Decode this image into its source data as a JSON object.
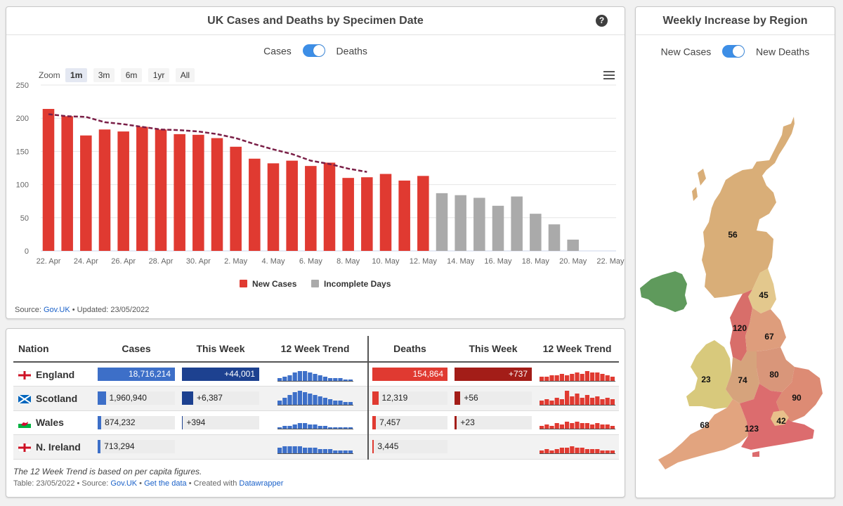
{
  "chart_card": {
    "title": "UK Cases and Deaths by Specimen Date",
    "toggle_left": "Cases",
    "toggle_right": "Deaths",
    "zoom_label": "Zoom",
    "zoom_buttons": [
      "1m",
      "3m",
      "6m",
      "1yr",
      "All"
    ],
    "zoom_active": "1m",
    "source_prefix": "Source:",
    "source_link": "Gov.UK",
    "updated": "• Updated: 23/05/2022"
  },
  "chart_data": {
    "type": "bar",
    "ylim": [
      0,
      250
    ],
    "yticks": [
      0,
      50,
      100,
      150,
      200,
      250
    ],
    "dates": [
      "22. Apr",
      "23. Apr",
      "24. Apr",
      "25. Apr",
      "26. Apr",
      "27. Apr",
      "28. Apr",
      "29. Apr",
      "30. Apr",
      "1. May",
      "2. May",
      "3. May",
      "4. May",
      "5. May",
      "6. May",
      "7. May",
      "8. May",
      "9. May",
      "10. May",
      "11. May",
      "12. May",
      "13. May",
      "14. May",
      "15. May",
      "16. May",
      "17. May",
      "18. May",
      "19. May",
      "20. May",
      "21. May",
      "22. May"
    ],
    "xtick_labels": [
      "22. Apr",
      "24. Apr",
      "26. Apr",
      "28. Apr",
      "30. Apr",
      "2. May",
      "4. May",
      "6. May",
      "8. May",
      "10. May",
      "12. May",
      "14. May",
      "16. May",
      "18. May",
      "20. May",
      "22. May"
    ],
    "series": [
      {
        "name": "New Cases",
        "color": "#e03a31",
        "values": [
          214,
          203,
          174,
          183,
          180,
          187,
          183,
          176,
          175,
          170,
          157,
          139,
          132,
          136,
          128,
          133,
          110,
          111,
          116,
          106,
          113,
          null,
          null,
          null,
          null,
          null,
          null,
          null,
          null,
          null,
          null
        ]
      },
      {
        "name": "Incomplete Days",
        "color": "#aaaaaa",
        "values": [
          null,
          null,
          null,
          null,
          null,
          null,
          null,
          null,
          null,
          null,
          null,
          null,
          null,
          null,
          null,
          null,
          null,
          null,
          null,
          null,
          null,
          87,
          84,
          80,
          68,
          82,
          56,
          40,
          17,
          null,
          null
        ]
      }
    ],
    "trend": {
      "color": "#7a1f47",
      "values": [
        206,
        203,
        202,
        194,
        191,
        187,
        183,
        182,
        180,
        176,
        170,
        161,
        153,
        146,
        136,
        131,
        124,
        119
      ]
    }
  },
  "map_card": {
    "title": "Weekly Increase by Region",
    "toggle_left": "New Cases",
    "toggle_right": "New Deaths",
    "region_values": {
      "scotland": "56",
      "north_east": "45",
      "north_west": "120",
      "yorkshire": "67",
      "wales": "23",
      "west_midlands": "74",
      "east_midlands": "80",
      "east": "90",
      "south_west": "68",
      "south_east": "123",
      "london": "42"
    }
  },
  "table": {
    "headers": [
      "Nation",
      "Cases",
      "This Week",
      "12 Week Trend",
      "Deaths",
      "This Week",
      "12 Week Trend"
    ],
    "rows": [
      {
        "nation": "England",
        "cases": "18,716,214",
        "cases_frac": 1.0,
        "cases_week": "+44,001",
        "cases_week_frac": 1.0,
        "deaths": "154,864",
        "deaths_frac": 1.0,
        "deaths_week": "+737",
        "deaths_week_frac": 1.0
      },
      {
        "nation": "Scotland",
        "cases": "1,960,940",
        "cases_frac": 0.105,
        "cases_week": "+6,387",
        "cases_week_frac": 0.145,
        "deaths": "12,319",
        "deaths_frac": 0.08,
        "deaths_week": "+56",
        "deaths_week_frac": 0.076
      },
      {
        "nation": "Wales",
        "cases": "874,232",
        "cases_frac": 0.047,
        "cases_week": "+394",
        "cases_week_frac": 0.009,
        "deaths": "7,457",
        "deaths_frac": 0.048,
        "deaths_week": "+23",
        "deaths_week_frac": 0.031
      },
      {
        "nation": "N. Ireland",
        "cases": "713,294",
        "cases_frac": 0.038,
        "cases_week": "",
        "cases_week_frac": 0,
        "deaths": "3,445",
        "deaths_frac": 0.022,
        "deaths_week": "",
        "deaths_week_frac": 0
      }
    ],
    "spark_cases": [
      [
        2,
        3,
        4,
        6,
        7,
        7,
        6,
        5,
        4,
        3,
        2,
        2,
        2,
        1,
        1
      ],
      [
        3,
        5,
        7,
        9,
        10,
        9,
        8,
        7,
        6,
        5,
        4,
        3,
        3,
        2,
        2
      ],
      [
        1,
        2,
        2,
        3,
        4,
        4,
        3,
        3,
        2,
        2,
        1,
        1,
        1,
        1,
        1
      ],
      [
        4,
        5,
        5,
        5,
        5,
        4,
        4,
        4,
        3,
        3,
        3,
        2,
        2,
        2,
        2
      ]
    ],
    "spark_deaths": [
      [
        3,
        3,
        4,
        4,
        5,
        4,
        5,
        6,
        5,
        7,
        6,
        6,
        5,
        4,
        3
      ],
      [
        3,
        4,
        3,
        5,
        4,
        10,
        6,
        8,
        5,
        7,
        5,
        6,
        4,
        5,
        4
      ],
      [
        2,
        3,
        2,
        4,
        3,
        5,
        4,
        5,
        4,
        4,
        3,
        4,
        3,
        3,
        2
      ],
      [
        2,
        3,
        2,
        3,
        4,
        4,
        5,
        4,
        4,
        3,
        3,
        3,
        2,
        2,
        2
      ]
    ],
    "note": "The 12 Week Trend is based on per capita figures.",
    "foot_prefix": "Table: 23/05/2022 • Source:",
    "foot_source": "Gov.UK",
    "foot_data": "Get the data",
    "foot_created": "• Created with",
    "foot_dw": "Datawrapper"
  }
}
